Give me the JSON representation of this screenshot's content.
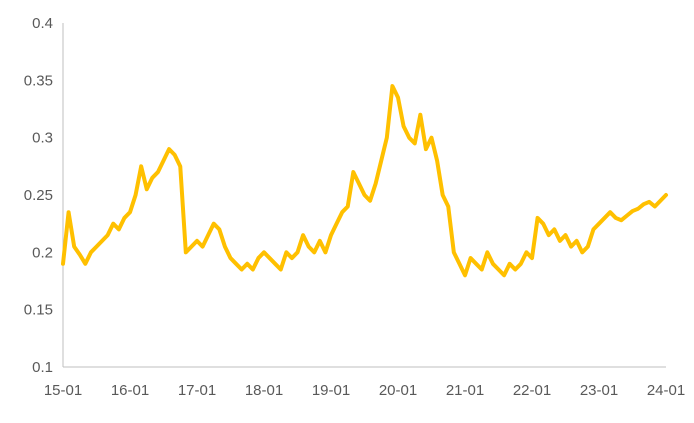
{
  "chart_data": {
    "type": "line",
    "x_tick_labels": [
      "15-01",
      "16-01",
      "17-01",
      "18-01",
      "19-01",
      "20-01",
      "21-01",
      "22-01",
      "23-01",
      "24-01"
    ],
    "y_tick_labels": [
      "0.1",
      "0.15",
      "0.2",
      "0.25",
      "0.3",
      "0.35",
      "0.4"
    ],
    "ylim": [
      0.1,
      0.4
    ],
    "xlim": [
      "2015-01",
      "2024-01"
    ],
    "grid": false,
    "colors": {
      "line": "#FFC000",
      "axis": "#BFBFBF",
      "text": "#595959"
    },
    "series": [
      {
        "x": [
          "2015-01",
          "2015-02",
          "2015-03",
          "2015-04",
          "2015-05",
          "2015-06",
          "2015-07",
          "2015-08",
          "2015-09",
          "2015-10",
          "2015-11",
          "2015-12",
          "2016-01",
          "2016-02",
          "2016-03",
          "2016-04",
          "2016-05",
          "2016-06",
          "2016-07",
          "2016-08",
          "2016-09",
          "2016-10",
          "2016-11",
          "2016-12",
          "2017-01",
          "2017-02",
          "2017-03",
          "2017-04",
          "2017-05",
          "2017-06",
          "2017-07",
          "2017-08",
          "2017-09",
          "2017-10",
          "2017-11",
          "2017-12",
          "2018-01",
          "2018-02",
          "2018-03",
          "2018-04",
          "2018-05",
          "2018-06",
          "2018-07",
          "2018-08",
          "2018-09",
          "2018-10",
          "2018-11",
          "2018-12",
          "2019-01",
          "2019-02",
          "2019-03",
          "2019-04",
          "2019-05",
          "2019-06",
          "2019-07",
          "2019-08",
          "2019-09",
          "2019-10",
          "2019-11",
          "2019-12",
          "2020-01",
          "2020-02",
          "2020-03",
          "2020-04",
          "2020-05",
          "2020-06",
          "2020-07",
          "2020-08",
          "2020-09",
          "2020-10",
          "2020-11",
          "2020-12",
          "2021-01",
          "2021-02",
          "2021-03",
          "2021-04",
          "2021-05",
          "2021-06",
          "2021-07",
          "2021-08",
          "2021-09",
          "2021-10",
          "2021-11",
          "2021-12",
          "2022-01",
          "2022-02",
          "2022-03",
          "2022-04",
          "2022-05",
          "2022-06",
          "2022-07",
          "2022-08",
          "2022-09",
          "2022-10",
          "2022-11",
          "2022-12",
          "2023-01",
          "2023-02",
          "2023-03",
          "2023-04",
          "2023-05",
          "2023-06",
          "2023-07",
          "2023-08",
          "2023-09",
          "2023-10",
          "2023-11",
          "2023-12",
          "2024-01"
        ],
        "values": [
          0.19,
          0.235,
          0.205,
          0.198,
          0.19,
          0.2,
          0.205,
          0.21,
          0.215,
          0.225,
          0.22,
          0.23,
          0.235,
          0.25,
          0.275,
          0.255,
          0.265,
          0.27,
          0.28,
          0.29,
          0.285,
          0.275,
          0.2,
          0.205,
          0.21,
          0.205,
          0.215,
          0.225,
          0.22,
          0.205,
          0.195,
          0.19,
          0.185,
          0.19,
          0.185,
          0.195,
          0.2,
          0.195,
          0.19,
          0.185,
          0.2,
          0.195,
          0.2,
          0.215,
          0.205,
          0.2,
          0.21,
          0.2,
          0.215,
          0.225,
          0.235,
          0.24,
          0.27,
          0.26,
          0.25,
          0.245,
          0.26,
          0.28,
          0.3,
          0.345,
          0.335,
          0.31,
          0.3,
          0.295,
          0.32,
          0.29,
          0.3,
          0.28,
          0.25,
          0.24,
          0.2,
          0.19,
          0.18,
          0.195,
          0.19,
          0.185,
          0.2,
          0.19,
          0.185,
          0.18,
          0.19,
          0.185,
          0.19,
          0.2,
          0.195,
          0.23,
          0.225,
          0.215,
          0.22,
          0.21,
          0.215,
          0.205,
          0.21,
          0.2,
          0.205,
          0.22,
          0.225,
          0.23,
          0.235,
          0.23,
          0.228,
          0.232,
          0.236,
          0.238,
          0.242,
          0.244,
          0.24,
          0.245,
          0.25
        ]
      }
    ]
  }
}
